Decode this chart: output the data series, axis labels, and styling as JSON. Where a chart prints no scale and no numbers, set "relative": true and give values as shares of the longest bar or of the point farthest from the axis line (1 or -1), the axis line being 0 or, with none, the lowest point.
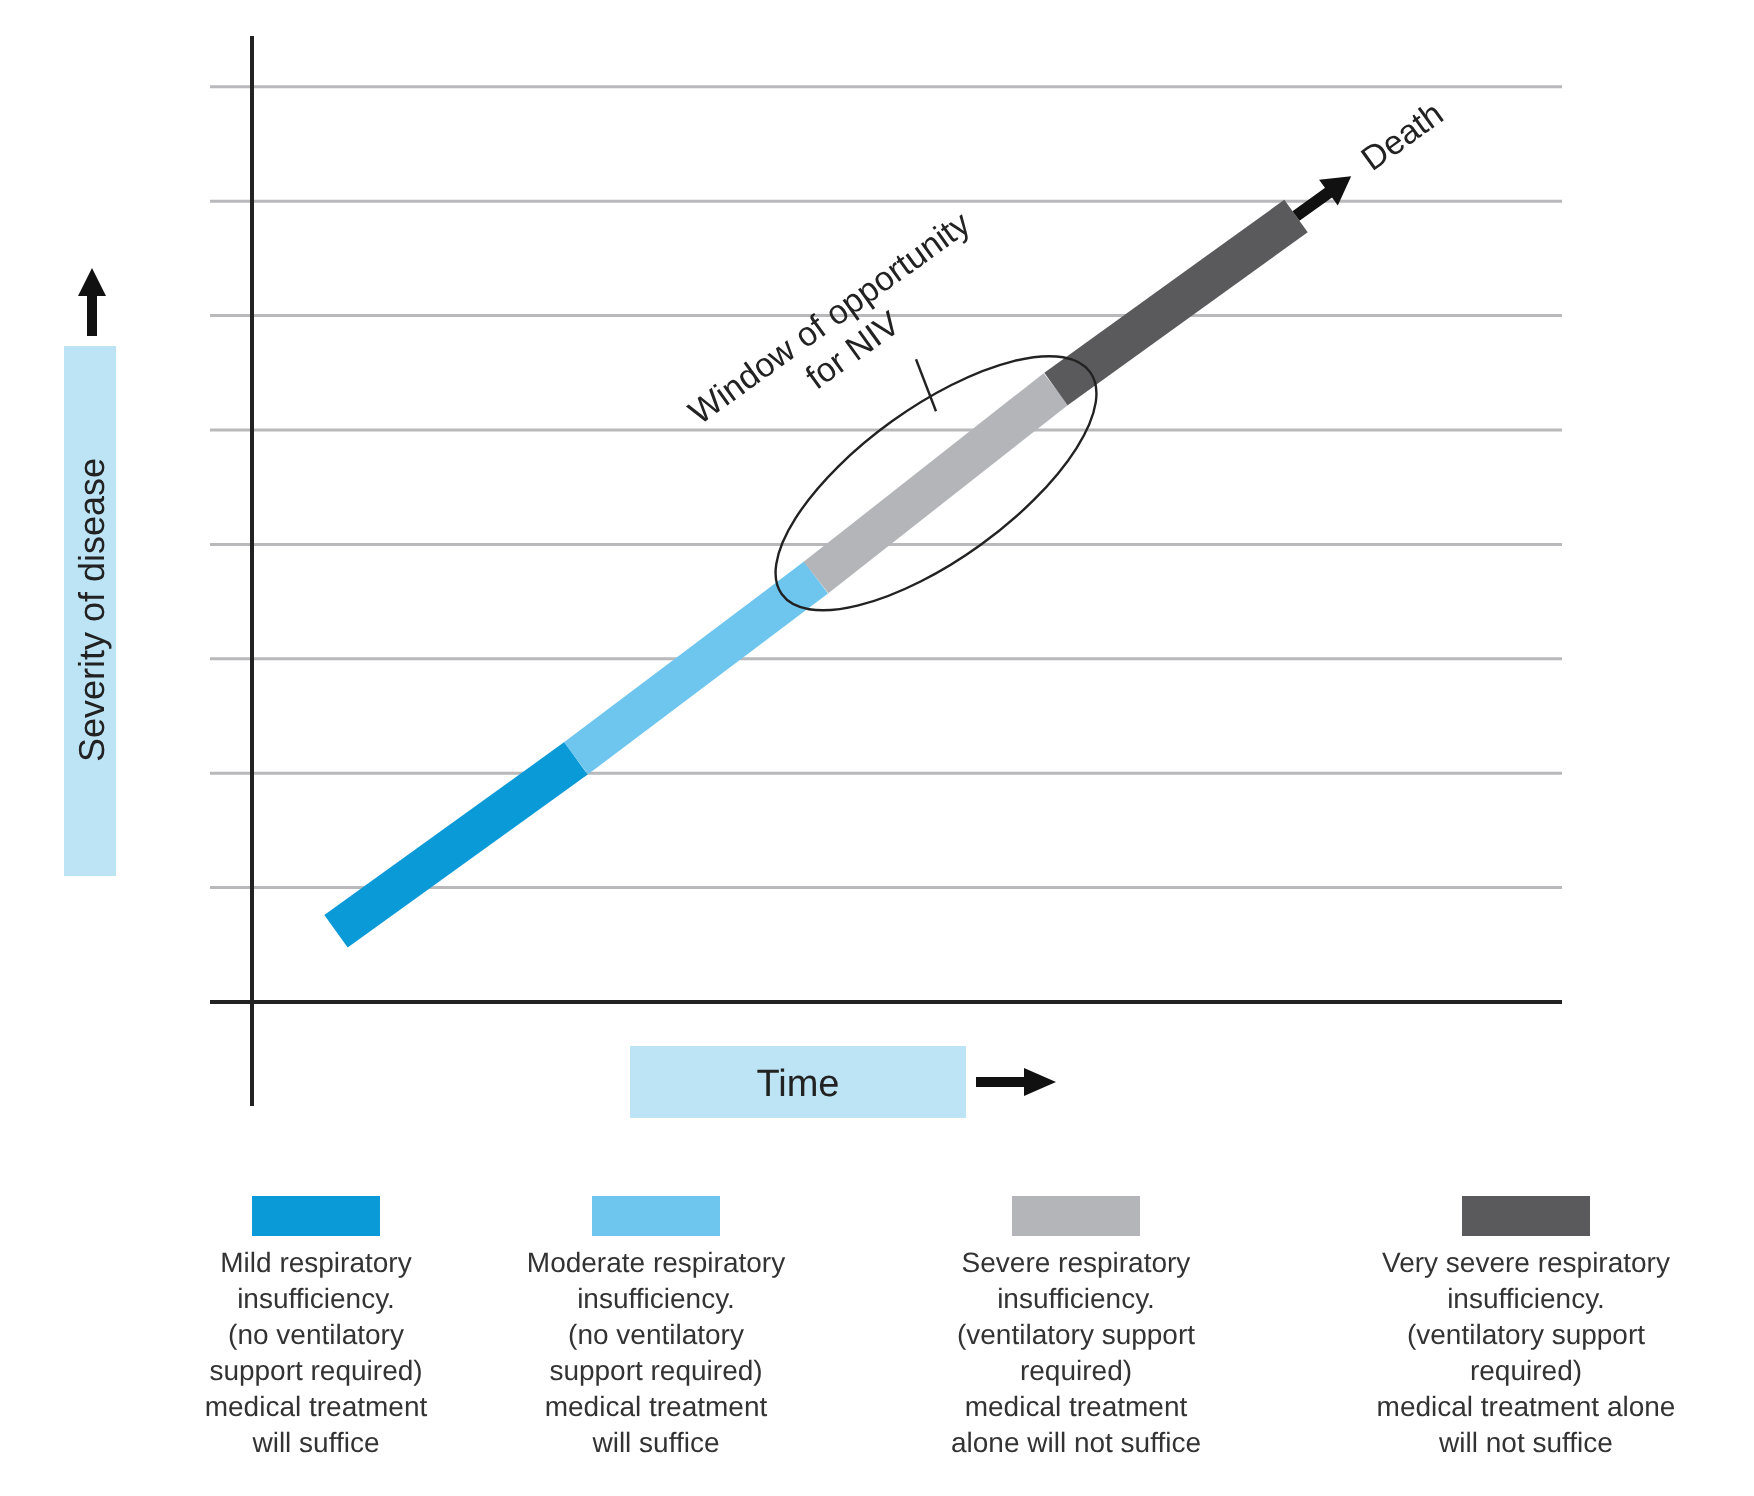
{
  "chart_data": {
    "type": "line",
    "relative": true,
    "ylabel": "Severity of disease",
    "xlabel": "Time",
    "categories": [
      null,
      null,
      null,
      null,
      null
    ],
    "grid": "y",
    "legend": "bottom",
    "series": [
      {
        "name": "Mild respiratory\ninsufficiency.\n(no ventilatory\nsupport required)\nmedical treatment\nwill suffice",
        "color": "#0a9ad8",
        "values": [
          0.09,
          0.31,
          null,
          null,
          null
        ]
      },
      {
        "name": "Moderate respiratory\ninsufficiency.\n(no ventilatory\nsupport required)\nmedical treatment\nwill suffice",
        "color": "#6ec6ee",
        "values": [
          null,
          0.31,
          0.54,
          null,
          null
        ]
      },
      {
        "name": "Severe respiratory\ninsufficiency.\n(ventilatory support\nrequired)\nmedical treatment\nalone will not  suffice",
        "color": "#b4b5b8",
        "values": [
          null,
          null,
          0.54,
          0.78,
          null
        ]
      },
      {
        "name": "Very severe respiratory\ninsufficiency.\n(ventilatory support\nrequired)\nmedical treatment alone\nwill not  suffice",
        "color": "#5a5a5c",
        "values": [
          null,
          null,
          null,
          0.78,
          1
        ]
      }
    ],
    "annotations": [
      "Window of opportunity\nfor NIV",
      "Death"
    ]
  }
}
